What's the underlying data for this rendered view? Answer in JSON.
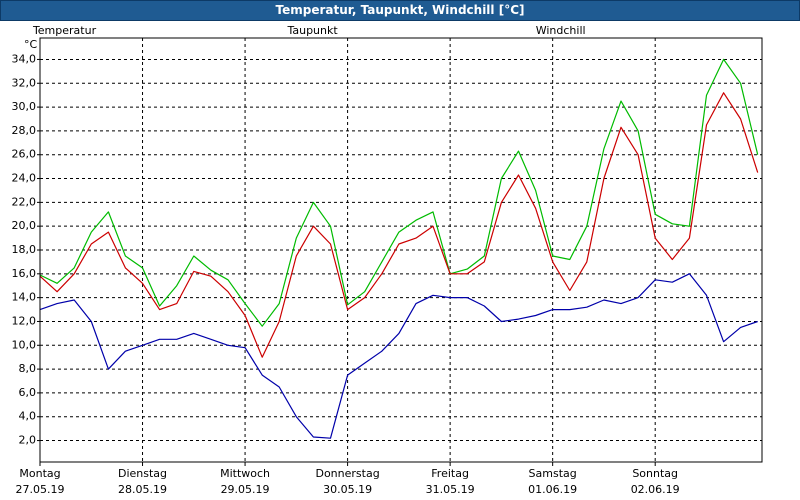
{
  "chart_data": {
    "type": "line",
    "title": "Temperatur, Taupunkt, Windchill [°C]",
    "y_unit": "°C",
    "x": [
      0,
      4,
      8,
      12,
      16,
      20,
      24,
      28,
      32,
      36,
      40,
      44,
      48,
      52,
      56,
      60,
      64,
      68,
      72,
      76,
      80,
      84,
      88,
      92,
      96,
      100,
      104,
      108,
      112,
      116,
      120,
      124,
      128,
      132,
      136,
      140,
      144,
      148,
      152,
      156,
      160,
      164,
      168
    ],
    "xlim": [
      0,
      169
    ],
    "xticks": [
      {
        "value": 0,
        "label": [
          "Montag",
          "27.05.19"
        ]
      },
      {
        "value": 24,
        "label": [
          "Dienstag",
          "28.05.19"
        ]
      },
      {
        "value": 48,
        "label": [
          "Mittwoch",
          "29.05.19"
        ]
      },
      {
        "value": 72,
        "label": [
          "Donnerstag",
          "30.05.19"
        ]
      },
      {
        "value": 96,
        "label": [
          "Freitag",
          "31.05.19"
        ]
      },
      {
        "value": 120,
        "label": [
          "Samstag",
          "01.06.19"
        ]
      },
      {
        "value": 144,
        "label": [
          "Sonntag",
          "02.06.19"
        ]
      }
    ],
    "ylim": [
      0.2,
      35.8
    ],
    "yticks": [
      {
        "value": 2,
        "label": "2,0"
      },
      {
        "value": 4,
        "label": "4,0"
      },
      {
        "value": 6,
        "label": "6,0"
      },
      {
        "value": 8,
        "label": "8,0"
      },
      {
        "value": 10,
        "label": "10,0"
      },
      {
        "value": 12,
        "label": "12,0"
      },
      {
        "value": 14,
        "label": "14,0"
      },
      {
        "value": 16,
        "label": "16,0"
      },
      {
        "value": 18,
        "label": "18,0"
      },
      {
        "value": 20,
        "label": "20,0"
      },
      {
        "value": 22,
        "label": "22,0"
      },
      {
        "value": 24,
        "label": "24,0"
      },
      {
        "value": 26,
        "label": "26,0"
      },
      {
        "value": 28,
        "label": "28,0"
      },
      {
        "value": 30,
        "label": "30,0"
      },
      {
        "value": 32,
        "label": "32,0"
      },
      {
        "value": 34,
        "label": "34,0"
      }
    ],
    "grid": true,
    "series": [
      {
        "name": "Temperatur",
        "color": "#cc0000",
        "values": [
          15.8,
          14.5,
          16,
          18.5,
          19.5,
          16.5,
          15.2,
          13,
          13.5,
          16.2,
          15.8,
          14.5,
          12.5,
          9,
          12,
          17.5,
          20,
          18.5,
          13,
          14,
          16,
          18.5,
          19,
          20,
          16,
          16,
          17,
          22,
          24.3,
          21.5,
          17,
          14.6,
          17,
          24,
          28.3,
          26,
          19,
          17.2,
          19,
          28.5,
          31.2,
          29,
          24.5
        ]
      },
      {
        "name": "Taupunkt",
        "color": "#0000aa",
        "values": [
          13,
          13.5,
          13.8,
          12,
          8,
          9.5,
          10,
          10.5,
          10.5,
          11,
          10.5,
          10,
          9.8,
          7.5,
          6.5,
          4,
          2.3,
          2.2,
          7.5,
          8.5,
          9.5,
          11,
          13.5,
          14.2,
          14,
          14,
          13.3,
          12,
          12.2,
          12.5,
          13,
          13,
          13.2,
          13.8,
          13.5,
          14,
          15.5,
          15.3,
          16,
          14.2,
          10.3,
          11.5,
          12
        ]
      },
      {
        "name": "Windchill",
        "color": "#00bb00",
        "values": [
          15.9,
          15.2,
          16.5,
          19.5,
          21.2,
          17.5,
          16.5,
          13.3,
          15,
          17.5,
          16.3,
          15.5,
          13.5,
          11.6,
          13.5,
          19,
          22,
          20,
          13.4,
          14.5,
          17,
          19.5,
          20.5,
          21.2,
          16,
          16.4,
          17.5,
          24,
          26.3,
          23,
          17.5,
          17.2,
          20,
          26.5,
          30.5,
          28,
          21,
          20.2,
          20,
          31,
          34,
          32,
          26
        ]
      }
    ]
  }
}
